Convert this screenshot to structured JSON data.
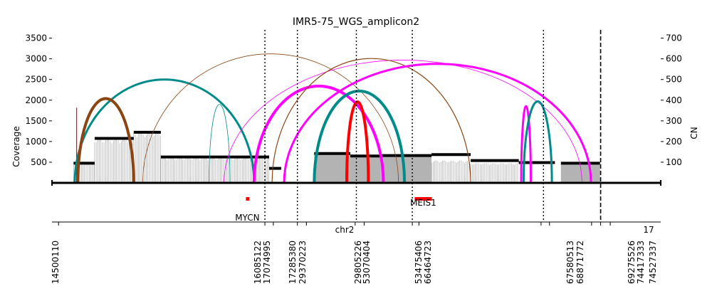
{
  "chart_data": {
    "type": "amplicon-structure",
    "title": "IMR5-75_WGS_amplicon2",
    "ylabel_left": "Coverage",
    "ylabel_right": "CN",
    "xlabel": "chr2",
    "xlabel2": "17",
    "left_ticks": [
      500,
      1000,
      1500,
      2000,
      2500,
      3000,
      3500
    ],
    "right_ticks": [
      100,
      200,
      300,
      400,
      500,
      600,
      700
    ],
    "ylim_coverage": [
      0,
      3700
    ],
    "ylim_cn": [
      0,
      740
    ],
    "breakpoint_labels": [
      "14500110",
      "16085122",
      "17074995",
      "17285380",
      "29370223",
      "29805226",
      "53070404",
      "53475406",
      "66464723",
      "67580513",
      "68871772",
      "69275526",
      "74417333",
      "74527337"
    ],
    "genes": [
      {
        "name": "MYCN",
        "x": 0.32
      },
      {
        "name": "MEIS1",
        "x": 0.61
      }
    ],
    "x_range": [
      0,
      1
    ],
    "segments": [
      {
        "x1": 0.03,
        "x2": 0.065,
        "cn": 95
      },
      {
        "x1": 0.065,
        "x2": 0.13,
        "cn": 215
      },
      {
        "x1": 0.13,
        "x2": 0.175,
        "cn": 245
      },
      {
        "x1": 0.175,
        "x2": 0.355,
        "cn": 125
      },
      {
        "x1": 0.355,
        "x2": 0.375,
        "cn": 70
      },
      {
        "x1": 0.43,
        "x2": 0.49,
        "cn": 142
      },
      {
        "x1": 0.49,
        "x2": 0.54,
        "cn": 130
      },
      {
        "x1": 0.54,
        "x2": 0.625,
        "cn": 132
      },
      {
        "x1": 0.625,
        "x2": 0.69,
        "cn": 137
      },
      {
        "x1": 0.69,
        "x2": 0.77,
        "cn": 108
      },
      {
        "x1": 0.77,
        "x2": 0.83,
        "cn": 98
      },
      {
        "x1": 0.84,
        "x2": 0.905,
        "cn": 95
      }
    ],
    "coverage_regions": [
      {
        "x1": 0.03,
        "x2": 0.065,
        "cov": 470
      },
      {
        "x1": 0.065,
        "x2": 0.13,
        "cov": 1060
      },
      {
        "x1": 0.13,
        "x2": 0.175,
        "cov": 1220
      },
      {
        "x1": 0.175,
        "x2": 0.355,
        "cov": 610
      },
      {
        "x1": 0.43,
        "x2": 0.49,
        "cov": 700
      },
      {
        "x1": 0.49,
        "x2": 0.54,
        "cov": 620
      },
      {
        "x1": 0.54,
        "x2": 0.625,
        "cov": 660
      },
      {
        "x1": 0.625,
        "x2": 0.69,
        "cov": 540
      },
      {
        "x1": 0.69,
        "x2": 0.77,
        "cov": 480
      },
      {
        "x1": 0.84,
        "x2": 0.905,
        "cov": 460
      }
    ],
    "spike": {
      "x": 0.035,
      "cov": 1820
    },
    "dotted_lines": [
      0.348,
      0.402,
      0.5,
      0.593,
      0.811
    ],
    "dashed_lines": [
      0.906
    ],
    "axis_ticks": [
      0.005,
      0.348,
      0.362,
      0.402,
      0.417,
      0.498,
      0.513,
      0.593,
      0.604,
      0.807,
      0.821,
      0.891,
      0.906,
      0.922
    ],
    "arcs": [
      {
        "x1": 0.032,
        "x2": 0.33,
        "cov": 2500,
        "color": "#008b8b",
        "width": 3
      },
      {
        "x1": 0.037,
        "x2": 0.13,
        "cov": 2040,
        "color": "#8b4513",
        "width": 4
      },
      {
        "x1": 0.145,
        "x2": 0.57,
        "cov": 3120,
        "color": "#8b4513",
        "width": 0.8
      },
      {
        "x1": 0.255,
        "x2": 0.29,
        "cov": 1900,
        "color": "#008b8b",
        "width": 0.8
      },
      {
        "x1": 0.28,
        "x2": 0.875,
        "cov": 2970,
        "color": "#ff00ff",
        "width": 0.8
      },
      {
        "x1": 0.33,
        "x2": 0.545,
        "cov": 2340,
        "color": "#ff00ff",
        "width": 4
      },
      {
        "x1": 0.36,
        "x2": 0.69,
        "cov": 3010,
        "color": "#8b4513",
        "width": 1.2
      },
      {
        "x1": 0.38,
        "x2": 0.89,
        "cov": 2880,
        "color": "#ff00ff",
        "width": 3
      },
      {
        "x1": 0.43,
        "x2": 0.58,
        "cov": 2220,
        "color": "#008b8b",
        "width": 4
      },
      {
        "x1": 0.484,
        "x2": 0.52,
        "cov": 1960,
        "color": "#ff0000",
        "width": 4
      },
      {
        "x1": 0.774,
        "x2": 0.79,
        "cov": 1860,
        "color": "#ff00ff",
        "width": 3
      },
      {
        "x1": 0.778,
        "x2": 0.825,
        "cov": 1970,
        "color": "#008b8b",
        "width": 3
      }
    ]
  }
}
